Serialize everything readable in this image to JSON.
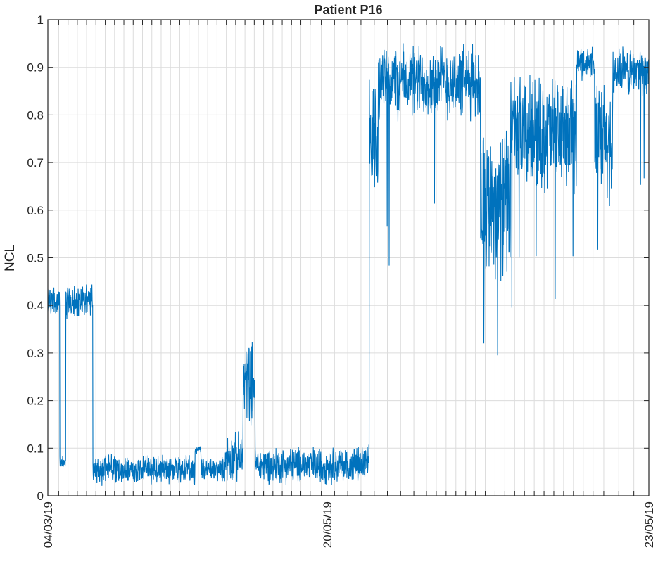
{
  "chart_data": {
    "type": "line",
    "title": "Patient P16",
    "xlabel": "",
    "ylabel": "NCL",
    "ylim": [
      0,
      1
    ],
    "yticks": [
      0,
      0.1,
      0.2,
      0.3,
      0.4,
      0.5,
      0.6,
      0.7,
      0.8,
      0.9,
      1
    ],
    "ytick_labels": [
      "0",
      "0.1",
      "0.2",
      "0.3",
      "0.4",
      "0.5",
      "0.6",
      "0.7",
      "0.8",
      "0.9",
      "1"
    ],
    "xtick_labels": [
      "04/03/19",
      "20/05/19",
      "23/05/19"
    ],
    "grid": true,
    "line_color": "#0072BD",
    "segments": [
      {
        "from": 0.0,
        "to": 0.02,
        "base": 0.41,
        "amp": 0.04
      },
      {
        "from": 0.02,
        "to": 0.03,
        "base": 0.07,
        "amp": 0.015
      },
      {
        "from": 0.03,
        "to": 0.075,
        "base": 0.41,
        "amp": 0.04
      },
      {
        "from": 0.075,
        "to": 0.245,
        "base": 0.055,
        "amp": 0.035
      },
      {
        "from": 0.245,
        "to": 0.255,
        "base": 0.095,
        "amp": 0.01
      },
      {
        "from": 0.255,
        "to": 0.295,
        "base": 0.055,
        "amp": 0.03
      },
      {
        "from": 0.295,
        "to": 0.325,
        "base": 0.08,
        "amp": 0.06
      },
      {
        "from": 0.325,
        "to": 0.345,
        "base": 0.24,
        "amp": 0.1
      },
      {
        "from": 0.345,
        "to": 0.535,
        "base": 0.065,
        "amp": 0.045
      },
      {
        "from": 0.535,
        "to": 0.55,
        "base": 0.74,
        "amp": 0.16
      },
      {
        "from": 0.55,
        "to": 0.72,
        "base": 0.87,
        "amp": 0.09
      },
      {
        "from": 0.72,
        "to": 0.77,
        "base": 0.62,
        "amp": 0.18
      },
      {
        "from": 0.77,
        "to": 0.88,
        "base": 0.76,
        "amp": 0.14
      },
      {
        "from": 0.88,
        "to": 0.91,
        "base": 0.91,
        "amp": 0.04
      },
      {
        "from": 0.91,
        "to": 0.94,
        "base": 0.74,
        "amp": 0.15
      },
      {
        "from": 0.94,
        "to": 1.0,
        "base": 0.89,
        "amp": 0.06
      }
    ]
  }
}
